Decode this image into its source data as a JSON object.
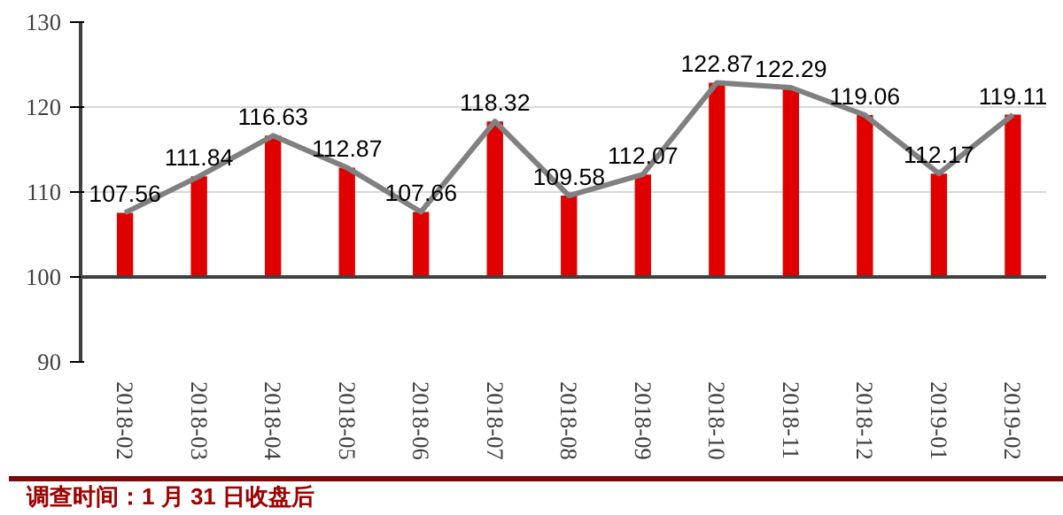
{
  "chart_data": {
    "type": "bar",
    "categories": [
      "2018-02",
      "2018-03",
      "2018-04",
      "2018-05",
      "2018-06",
      "2018-07",
      "2018-08",
      "2018-09",
      "2018-10",
      "2018-11",
      "2018-12",
      "2019-01",
      "2019-02"
    ],
    "series": [
      {
        "color": "#e00000",
        "base": [
          100,
          100,
          100,
          100,
          100,
          100,
          100,
          100,
          100,
          100,
          100,
          100,
          100
        ],
        "values": [
          7.56,
          11.84,
          16.63,
          12.87,
          7.66,
          18.32,
          9.58,
          12.07,
          22.87,
          22.29,
          19.06,
          12.17,
          19.11
        ]
      },
      {
        "type": "line",
        "color": "#808080",
        "values": [
          107.56,
          111.84,
          116.63,
          112.87,
          107.66,
          118.32,
          109.58,
          112.07,
          122.87,
          122.29,
          119.06,
          112.17,
          119.11
        ],
        "value_labels": [
          "107.56",
          "111.84",
          "116.63",
          "112.87",
          "107.66",
          "118.32",
          "109.58",
          "112.07",
          "122.87",
          "122.29",
          "119.06",
          "112.17",
          "119.11"
        ]
      }
    ],
    "ylim": [
      90,
      130
    ],
    "yticks": [
      90,
      100,
      110,
      120,
      130
    ],
    "grid": "y",
    "ref_lines": [
      {
        "axis": "y",
        "value": 100,
        "color": "#404040"
      }
    ],
    "annotations": [
      "调查时间：1 月 31 日收盘后"
    ]
  }
}
